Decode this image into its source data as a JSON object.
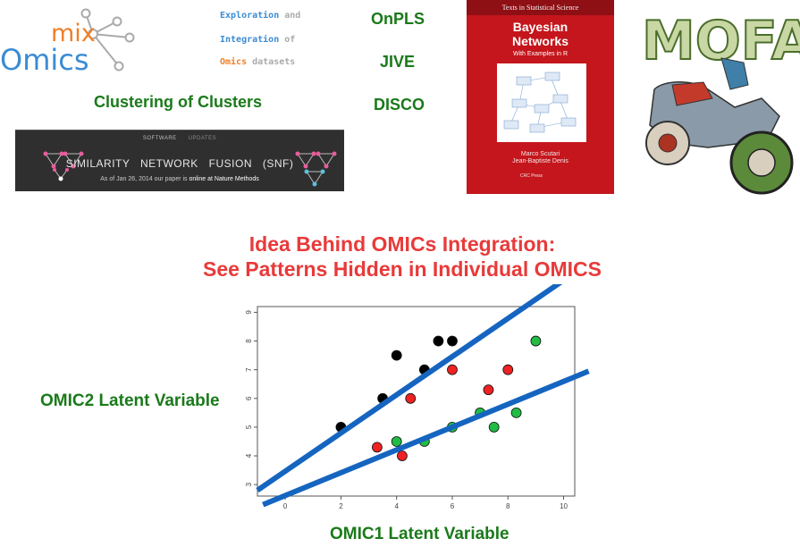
{
  "logos": {
    "mixomics": {
      "mix": "mix",
      "omics": "Omics"
    },
    "mofa": {
      "text": "MOFA"
    }
  },
  "tagline": {
    "line1_a": "Exploration",
    "line1_b": " and",
    "line2_a": "Integration",
    "line2_b": " of",
    "line3_a": "Omics",
    "line3_b": " datasets"
  },
  "methods": {
    "clustering": "Clustering of Clusters",
    "onpls": "OnPLS",
    "jive": "JIVE",
    "disco": "DISCO"
  },
  "snf_banner": {
    "nav_software": "SOFTWARE",
    "nav_updates": "UPDATES",
    "title": "SIMILARITY NETWORK FUSION (SNF)",
    "subtitle_a": "As of Jan 26, 2014 our paper is ",
    "subtitle_b": "online at Nature Methods"
  },
  "book": {
    "series": "Texts in Statistical Science",
    "title_line1": "Bayesian",
    "title_line2": "Networks",
    "subtitle": "With Examples in R",
    "author1": "Marco Scutari",
    "author2": "Jean-Baptiste Denis",
    "publisher": "CRC Press"
  },
  "headline": {
    "line1": "Idea Behind OMICs Integration:",
    "line2": "See Patterns Hidden in Individual OMICS"
  },
  "colors": {
    "green_text": "#1a7a1a",
    "red_title": "#e83a3a",
    "line_blue": "#1565c0",
    "point_black": "#000000",
    "point_red": "#ee2222",
    "point_green": "#22bb44"
  },
  "chart_data": {
    "type": "scatter",
    "xlabel": "OMIC1 Latent Variable",
    "ylabel": "OMIC2 Latent Variable",
    "xlim": [
      -1,
      10.4
    ],
    "ylim": [
      2.6,
      9.2
    ],
    "xticks": [
      0,
      2,
      4,
      6,
      8,
      10
    ],
    "yticks": [
      3,
      4,
      5,
      6,
      7,
      8,
      9
    ],
    "grid": false,
    "series": [
      {
        "color": "#000000",
        "points": [
          [
            2,
            5
          ],
          [
            3.5,
            6
          ],
          [
            4,
            7.5
          ],
          [
            5,
            7
          ],
          [
            5.5,
            8
          ],
          [
            6,
            8
          ]
        ]
      },
      {
        "color": "#ee2222",
        "points": [
          [
            3.3,
            4.3
          ],
          [
            4.2,
            4
          ],
          [
            4.5,
            6
          ],
          [
            6,
            7
          ],
          [
            7.3,
            6.3
          ],
          [
            8,
            7
          ]
        ]
      },
      {
        "color": "#22bb44",
        "points": [
          [
            4,
            4.5
          ],
          [
            5,
            4.5
          ],
          [
            6,
            5
          ],
          [
            7,
            5.5
          ],
          [
            7.5,
            5
          ],
          [
            8.3,
            5.5
          ],
          [
            9,
            8
          ]
        ]
      }
    ],
    "lines": [
      {
        "from": [
          -1,
          2.8
        ],
        "to": [
          9.9,
          10.05
        ]
      },
      {
        "from": [
          -0.8,
          2.3
        ],
        "to": [
          10.9,
          6.95
        ]
      }
    ]
  }
}
